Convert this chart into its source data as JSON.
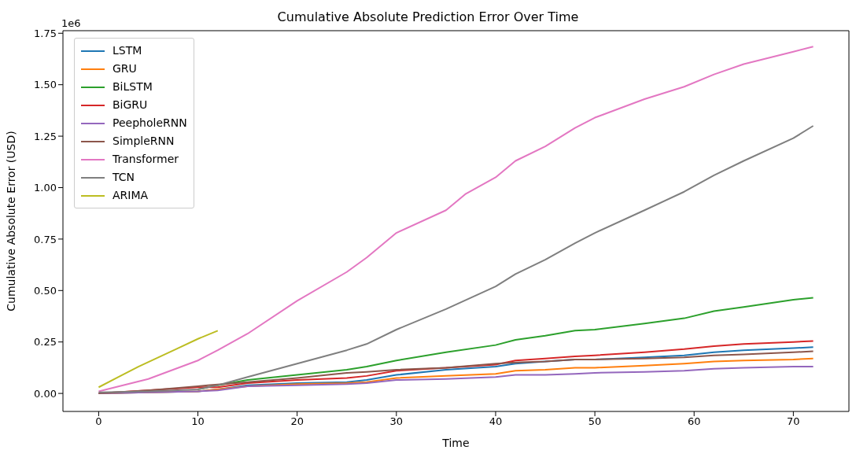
{
  "chart_data": {
    "type": "line",
    "title": "Cumulative Absolute Prediction Error Over Time",
    "xlabel": "Time",
    "ylabel": "Cumulative Absolute Error (USD)",
    "annotations": [
      "1e6"
    ],
    "xlim": [
      -3.6,
      75.6
    ],
    "xticks": [
      0,
      10,
      20,
      30,
      40,
      50,
      60,
      70
    ],
    "ylim": [
      -0.0875,
      1.7625
    ],
    "yticks": [
      {
        "value": 0,
        "label": "0.00"
      },
      {
        "value": 0.25,
        "label": "0.25"
      },
      {
        "value": 0.5,
        "label": "0.50"
      },
      {
        "value": 0.75,
        "label": "0.75"
      },
      {
        "value": 1,
        "label": "1.00"
      },
      {
        "value": 1.25,
        "label": "1.25"
      },
      {
        "value": 1.5,
        "label": "1.50"
      },
      {
        "value": 1.75,
        "label": "1.75"
      }
    ],
    "grid": false,
    "legend": "top left",
    "marker": "none",
    "line_style": "solid",
    "series": [
      {
        "name": "LSTM",
        "color": "#1f77b4",
        "x": [
          0,
          10,
          12,
          15,
          20,
          25,
          27,
          30,
          35,
          40,
          42,
          45,
          48,
          50,
          55,
          59,
          62,
          65,
          70,
          72
        ],
        "values": [
          0,
          0.01,
          0.02,
          0.04,
          0.05,
          0.055,
          0.065,
          0.09,
          0.115,
          0.13,
          0.145,
          0.155,
          0.165,
          0.165,
          0.175,
          0.185,
          0.2,
          0.21,
          0.22,
          0.225
        ]
      },
      {
        "name": "GRU",
        "color": "#ff7f0e",
        "x": [
          0,
          10,
          12,
          15,
          20,
          25,
          27,
          30,
          35,
          40,
          42,
          45,
          48,
          50,
          55,
          59,
          62,
          65,
          70,
          72
        ],
        "values": [
          0,
          0.01,
          0.02,
          0.035,
          0.045,
          0.05,
          0.055,
          0.075,
          0.085,
          0.095,
          0.11,
          0.115,
          0.125,
          0.125,
          0.135,
          0.145,
          0.155,
          0.16,
          0.165,
          0.17
        ]
      },
      {
        "name": "BiLSTM",
        "color": "#2ca02c",
        "x": [
          10,
          12,
          15,
          20,
          25,
          27,
          30,
          35,
          40,
          42,
          45,
          48,
          50,
          55,
          59,
          62,
          65,
          70,
          72
        ],
        "values": [
          0.02,
          0.04,
          0.065,
          0.09,
          0.115,
          0.13,
          0.16,
          0.2,
          0.235,
          0.26,
          0.28,
          0.305,
          0.31,
          0.34,
          0.365,
          0.4,
          0.42,
          0.455,
          0.465
        ]
      },
      {
        "name": "BiGRU",
        "color": "#d62728",
        "x": [
          0,
          10,
          12,
          15,
          20,
          25,
          27,
          30,
          35,
          40,
          42,
          45,
          48,
          50,
          55,
          59,
          62,
          65,
          70,
          72
        ],
        "values": [
          0,
          0.03,
          0.03,
          0.05,
          0.065,
          0.075,
          0.085,
          0.11,
          0.125,
          0.14,
          0.16,
          0.17,
          0.18,
          0.185,
          0.2,
          0.215,
          0.23,
          0.24,
          0.25,
          0.255
        ]
      },
      {
        "name": "PeepholeRNN",
        "color": "#9467bd",
        "x": [
          0,
          10,
          12,
          15,
          20,
          25,
          27,
          30,
          35,
          40,
          42,
          45,
          48,
          50,
          55,
          59,
          62,
          65,
          70,
          72
        ],
        "values": [
          0,
          0.01,
          0.015,
          0.035,
          0.04,
          0.045,
          0.05,
          0.065,
          0.07,
          0.08,
          0.09,
          0.09,
          0.095,
          0.1,
          0.105,
          0.11,
          0.12,
          0.125,
          0.13,
          0.13
        ]
      },
      {
        "name": "SimpleRNN",
        "color": "#8c564b",
        "x": [
          0,
          5,
          10,
          11,
          15,
          20,
          25,
          27,
          30,
          35,
          40,
          42,
          45,
          48,
          50,
          55,
          59,
          62,
          65,
          70,
          72
        ],
        "values": [
          0,
          0.015,
          0.035,
          0.04,
          0.055,
          0.075,
          0.1,
          0.105,
          0.115,
          0.125,
          0.145,
          0.15,
          0.155,
          0.165,
          0.165,
          0.17,
          0.175,
          0.185,
          0.19,
          0.2,
          0.205
        ]
      },
      {
        "name": "Transformer",
        "color": "#e377c2",
        "x": [
          0,
          5,
          10,
          12,
          15,
          20,
          25,
          27,
          30,
          35,
          37,
          40,
          42,
          45,
          48,
          50,
          55,
          59,
          62,
          65,
          70,
          72
        ],
        "values": [
          0.01,
          0.07,
          0.16,
          0.21,
          0.29,
          0.45,
          0.59,
          0.66,
          0.78,
          0.89,
          0.97,
          1.05,
          1.13,
          1.2,
          1.29,
          1.34,
          1.43,
          1.49,
          1.55,
          1.6,
          1.66,
          1.685
        ]
      },
      {
        "name": "TCN",
        "color": "#7f7f7f",
        "x": [
          0,
          5,
          10,
          12,
          15,
          20,
          25,
          27,
          30,
          35,
          40,
          42,
          45,
          48,
          50,
          55,
          59,
          62,
          65,
          70,
          72
        ],
        "values": [
          0.005,
          0.01,
          0.02,
          0.04,
          0.08,
          0.145,
          0.21,
          0.24,
          0.31,
          0.41,
          0.52,
          0.58,
          0.65,
          0.73,
          0.78,
          0.89,
          0.98,
          1.06,
          1.13,
          1.24,
          1.3
        ]
      },
      {
        "name": "ARIMA",
        "color": "#bcbd22",
        "x": [
          0,
          2,
          4,
          6,
          8,
          10,
          12
        ],
        "values": [
          0.03,
          0.08,
          0.13,
          0.175,
          0.22,
          0.265,
          0.305
        ]
      }
    ]
  }
}
